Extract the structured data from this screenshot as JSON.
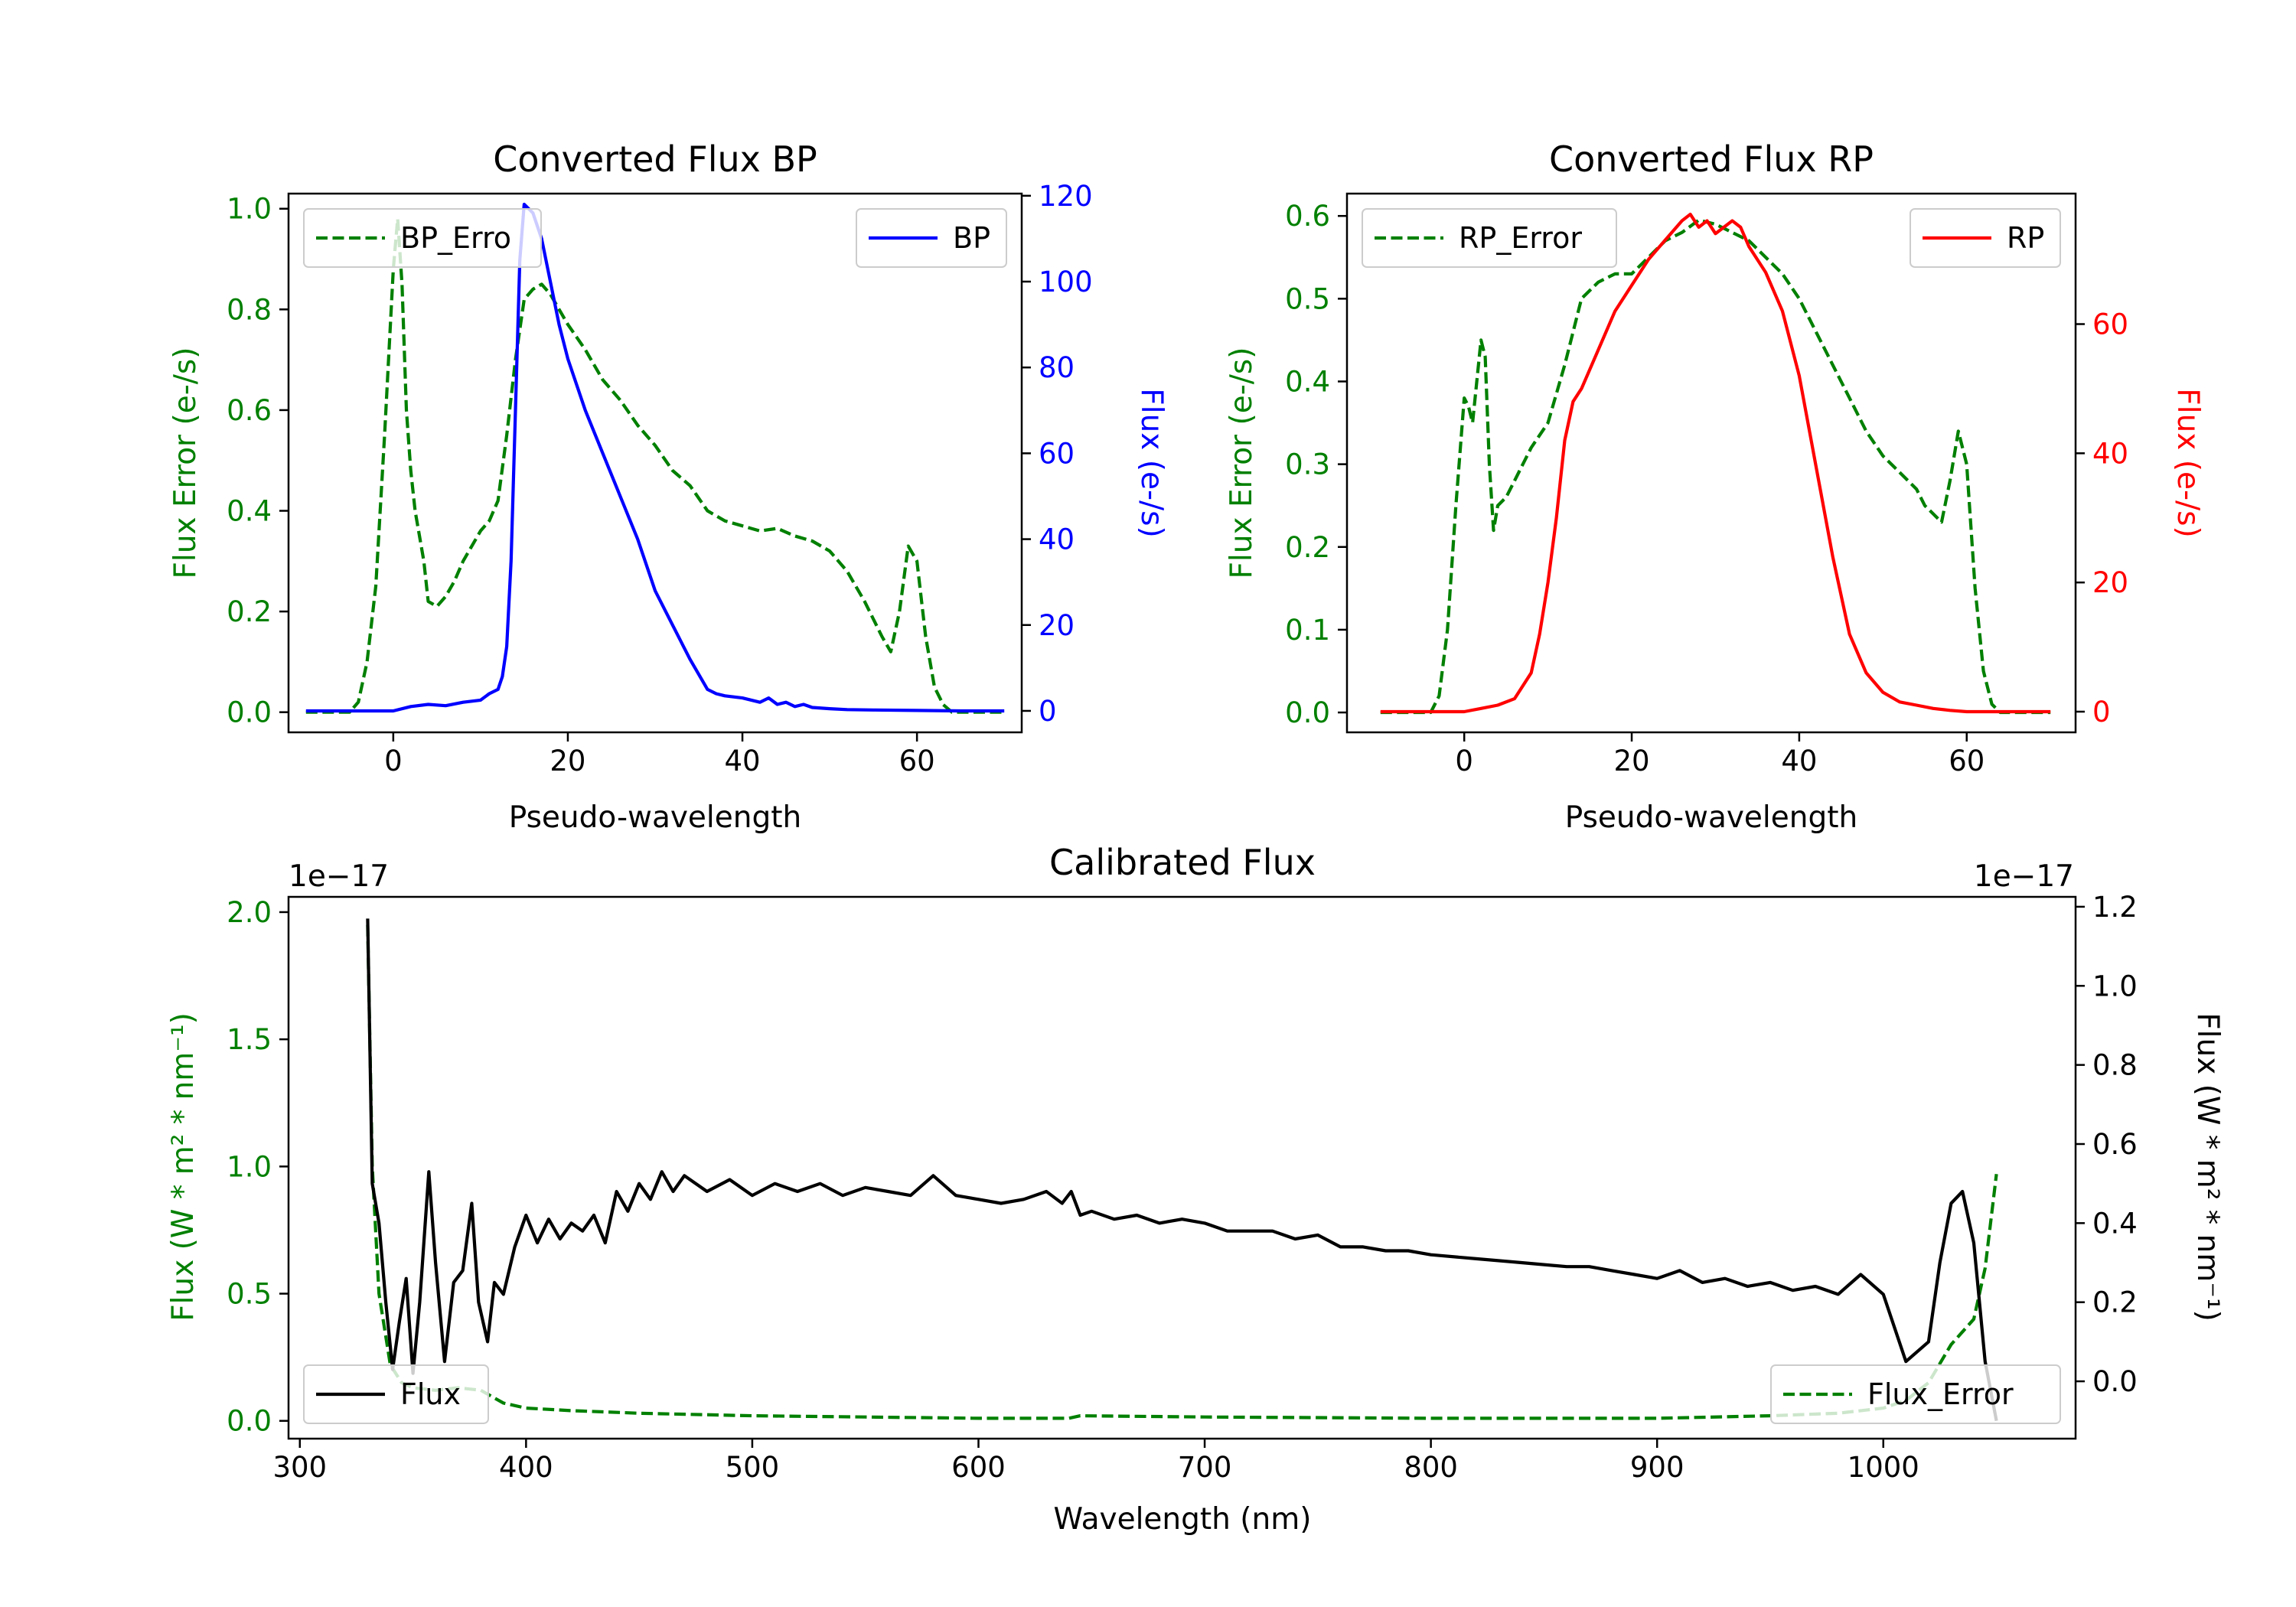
{
  "colors": {
    "green": "#008000",
    "blue": "#0000ff",
    "red": "#ff0000",
    "black": "#000000",
    "legend_edge": "#cccccc"
  },
  "chart_data": [
    {
      "id": "bp",
      "type": "line",
      "title": "Converted Flux BP",
      "xlabel": "Pseudo-wavelength",
      "xlim": [
        -12,
        72
      ],
      "xticks": [
        0,
        20,
        40,
        60
      ],
      "left_axis": {
        "label": "Flux Error (e-/s)",
        "ylim": [
          -0.04,
          1.03
        ],
        "ticks": [
          0.0,
          0.2,
          0.4,
          0.6,
          0.8,
          1.0
        ],
        "tick_labels": [
          "0.0",
          "0.2",
          "0.4",
          "0.6",
          "0.8",
          "1.0"
        ],
        "color": "green"
      },
      "right_axis": {
        "label": "Flux (e-/s)",
        "ylim": [
          -5,
          120.5
        ],
        "ticks": [
          0,
          20,
          40,
          60,
          80,
          100,
          120
        ],
        "tick_labels": [
          "0",
          "20",
          "40",
          "60",
          "80",
          "100",
          "120"
        ],
        "color": "blue"
      },
      "series": [
        {
          "name": "BP_Error",
          "axis": "left",
          "style": "dashed",
          "color": "green",
          "x": [
            -10,
            -5,
            -4,
            -3,
            -2,
            -1,
            0,
            0.5,
            1,
            1.5,
            2,
            2.5,
            3,
            3.5,
            4,
            5,
            6,
            7,
            8,
            9,
            10,
            11,
            12,
            13,
            14,
            15,
            16,
            17,
            18,
            19,
            20,
            22,
            24,
            26,
            28,
            30,
            32,
            34,
            36,
            38,
            40,
            42,
            44,
            46,
            48,
            50,
            52,
            54,
            56,
            57,
            58,
            59,
            60,
            61,
            62,
            63,
            64,
            65,
            70
          ],
          "values": [
            0,
            0,
            0.02,
            0.1,
            0.25,
            0.55,
            0.88,
            0.98,
            0.85,
            0.6,
            0.48,
            0.4,
            0.35,
            0.3,
            0.22,
            0.21,
            0.23,
            0.26,
            0.3,
            0.33,
            0.36,
            0.38,
            0.42,
            0.55,
            0.7,
            0.82,
            0.84,
            0.85,
            0.83,
            0.8,
            0.77,
            0.72,
            0.66,
            0.62,
            0.57,
            0.53,
            0.48,
            0.45,
            0.4,
            0.38,
            0.37,
            0.36,
            0.365,
            0.35,
            0.34,
            0.32,
            0.28,
            0.22,
            0.15,
            0.12,
            0.2,
            0.33,
            0.3,
            0.15,
            0.05,
            0.015,
            0,
            0,
            0
          ]
        },
        {
          "name": "BP",
          "axis": "right",
          "style": "solid",
          "color": "blue",
          "x": [
            -10,
            -5,
            0,
            2,
            4,
            6,
            8,
            10,
            11,
            12,
            12.5,
            13,
            13.5,
            14,
            14.5,
            15,
            15.5,
            16,
            16.5,
            17,
            18,
            19,
            20,
            22,
            24,
            26,
            28,
            30,
            32,
            34,
            36,
            37,
            38,
            40,
            42,
            43,
            44,
            45,
            46,
            47,
            48,
            50,
            52,
            55,
            60,
            65,
            70
          ],
          "values": [
            0,
            0,
            0,
            1,
            1.5,
            1.2,
            2,
            2.5,
            4,
            5,
            8,
            15,
            35,
            70,
            105,
            118,
            117,
            116,
            113,
            110,
            100,
            90,
            82,
            70,
            60,
            50,
            40,
            28,
            20,
            12,
            5,
            4,
            3.5,
            3,
            2,
            3,
            1.5,
            2,
            1,
            1.5,
            0.8,
            0.5,
            0.3,
            0.2,
            0.1,
            0,
            0
          ]
        }
      ],
      "legend": [
        {
          "label": "BP_Erro",
          "series": "BP_Error",
          "loc": "upper left"
        },
        {
          "label": "BP",
          "series": "BP",
          "loc": "upper right"
        }
      ]
    },
    {
      "id": "rp",
      "type": "line",
      "title": "Converted Flux RP",
      "xlabel": "Pseudo-wavelength",
      "xlim": [
        -14,
        73
      ],
      "xticks": [
        0,
        20,
        40,
        60
      ],
      "left_axis": {
        "label": "Flux Error (e-/s)",
        "ylim": [
          -0.024,
          0.627
        ],
        "ticks": [
          0.0,
          0.1,
          0.2,
          0.3,
          0.4,
          0.5,
          0.6
        ],
        "tick_labels": [
          "0.0",
          "0.1",
          "0.2",
          "0.3",
          "0.4",
          "0.5",
          "0.6"
        ],
        "color": "green"
      },
      "right_axis": {
        "label": "Flux (e-/s)",
        "ylim": [
          -3.2,
          80.2
        ],
        "ticks": [
          0,
          20,
          40,
          60
        ],
        "tick_labels": [
          "0",
          "20",
          "40",
          "60"
        ],
        "color": "red"
      },
      "series": [
        {
          "name": "RP_Error",
          "axis": "left",
          "style": "dashed",
          "color": "green",
          "x": [
            -10,
            -4,
            -3,
            -2,
            -1,
            0,
            0.5,
            1,
            1.5,
            2,
            2.5,
            3,
            3.5,
            4,
            5,
            6,
            8,
            10,
            12,
            14,
            16,
            18,
            20,
            22,
            24,
            26,
            28,
            30,
            32,
            34,
            36,
            38,
            40,
            42,
            44,
            46,
            48,
            50,
            52,
            54,
            55,
            56,
            57,
            58,
            59,
            60,
            61,
            62,
            63,
            64,
            65,
            70
          ],
          "values": [
            0,
            0,
            0.02,
            0.1,
            0.25,
            0.38,
            0.37,
            0.35,
            0.4,
            0.45,
            0.43,
            0.3,
            0.22,
            0.25,
            0.26,
            0.28,
            0.32,
            0.35,
            0.42,
            0.5,
            0.52,
            0.53,
            0.53,
            0.55,
            0.57,
            0.58,
            0.595,
            0.59,
            0.58,
            0.57,
            0.55,
            0.53,
            0.5,
            0.46,
            0.42,
            0.38,
            0.34,
            0.31,
            0.29,
            0.27,
            0.25,
            0.24,
            0.23,
            0.28,
            0.34,
            0.3,
            0.15,
            0.05,
            0.01,
            0,
            0,
            0
          ]
        },
        {
          "name": "RP",
          "axis": "right",
          "style": "solid",
          "color": "red",
          "x": [
            -10,
            0,
            2,
            4,
            6,
            8,
            9,
            10,
            11,
            12,
            13,
            14,
            16,
            18,
            20,
            22,
            24,
            26,
            27,
            28,
            29,
            30,
            31,
            32,
            33,
            34,
            36,
            38,
            40,
            42,
            44,
            46,
            48,
            50,
            52,
            54,
            56,
            58,
            60,
            62,
            65,
            70
          ],
          "values": [
            0,
            0,
            0.5,
            1,
            2,
            6,
            12,
            20,
            30,
            42,
            48,
            50,
            56,
            62,
            66,
            70,
            73,
            76,
            77,
            75,
            76,
            74,
            75,
            76,
            75,
            72,
            68,
            62,
            52,
            38,
            24,
            12,
            6,
            3,
            1.5,
            1,
            0.5,
            0.2,
            0,
            0,
            0,
            0
          ]
        }
      ],
      "legend": [
        {
          "label": "RP_Error",
          "series": "RP_Error",
          "loc": "upper left"
        },
        {
          "label": "RP",
          "series": "RP",
          "loc": "upper right"
        }
      ]
    },
    {
      "id": "cal",
      "type": "line",
      "title": "Calibrated Flux",
      "xlabel": "Wavelength (nm)",
      "xlim": [
        295,
        1085
      ],
      "xticks": [
        300,
        400,
        500,
        600,
        700,
        800,
        900,
        1000
      ],
      "left_axis": {
        "label": "Flux (W * m² * nm⁻¹)",
        "offset_text": "1e−17",
        "ylim": [
          -0.07,
          2.06
        ],
        "ticks": [
          0.0,
          0.5,
          1.0,
          1.5,
          2.0
        ],
        "tick_labels": [
          "0.0",
          "0.5",
          "1.0",
          "1.5",
          "2.0"
        ],
        "color": "green"
      },
      "right_axis": {
        "label": "Flux (W * m² * nm⁻¹)",
        "offset_text": "1e−17",
        "ylim": [
          -0.145,
          1.225
        ],
        "ticks": [
          0.0,
          0.2,
          0.4,
          0.6,
          0.8,
          1.0,
          1.2
        ],
        "tick_labels": [
          "0.0",
          "0.2",
          "0.4",
          "0.6",
          "0.8",
          "1.0",
          "1.2"
        ],
        "color": "black"
      },
      "series": [
        {
          "name": "Flux_Error",
          "axis": "left",
          "style": "dashed",
          "color": "green",
          "x": [
            330,
            332,
            335,
            340,
            345,
            350,
            360,
            370,
            380,
            390,
            400,
            420,
            450,
            500,
            550,
            600,
            640,
            645,
            700,
            800,
            900,
            950,
            980,
            1000,
            1010,
            1020,
            1030,
            1040,
            1045,
            1050
          ],
          "values": [
            1.95,
            1.0,
            0.5,
            0.22,
            0.15,
            0.13,
            0.12,
            0.13,
            0.12,
            0.07,
            0.05,
            0.04,
            0.03,
            0.02,
            0.015,
            0.01,
            0.01,
            0.02,
            0.015,
            0.01,
            0.01,
            0.02,
            0.03,
            0.05,
            0.08,
            0.15,
            0.3,
            0.4,
            0.6,
            0.97
          ]
        },
        {
          "name": "Flux",
          "axis": "right",
          "style": "solid",
          "color": "black",
          "x": [
            330,
            332,
            335,
            338,
            341,
            344,
            347,
            350,
            353,
            357,
            360,
            364,
            368,
            372,
            376,
            379,
            383,
            386,
            390,
            395,
            400,
            405,
            410,
            415,
            420,
            425,
            430,
            435,
            440,
            445,
            450,
            455,
            460,
            465,
            470,
            480,
            490,
            500,
            510,
            520,
            530,
            540,
            550,
            560,
            570,
            580,
            590,
            600,
            610,
            620,
            630,
            637,
            641,
            645,
            650,
            660,
            670,
            680,
            690,
            700,
            710,
            720,
            730,
            740,
            750,
            760,
            770,
            780,
            790,
            800,
            820,
            840,
            860,
            870,
            880,
            890,
            900,
            910,
            920,
            930,
            940,
            950,
            960,
            970,
            980,
            990,
            1000,
            1010,
            1020,
            1025,
            1030,
            1035,
            1040,
            1045,
            1050
          ],
          "values": [
            1.17,
            0.5,
            0.4,
            0.2,
            0.03,
            0.15,
            0.26,
            0.02,
            0.2,
            0.53,
            0.3,
            0.05,
            0.25,
            0.28,
            0.45,
            0.2,
            0.1,
            0.25,
            0.22,
            0.34,
            0.42,
            0.35,
            0.41,
            0.36,
            0.4,
            0.38,
            0.42,
            0.35,
            0.48,
            0.43,
            0.5,
            0.46,
            0.53,
            0.48,
            0.52,
            0.48,
            0.51,
            0.47,
            0.5,
            0.48,
            0.5,
            0.47,
            0.49,
            0.48,
            0.47,
            0.52,
            0.47,
            0.46,
            0.45,
            0.46,
            0.48,
            0.45,
            0.48,
            0.42,
            0.43,
            0.41,
            0.42,
            0.4,
            0.41,
            0.4,
            0.38,
            0.38,
            0.38,
            0.36,
            0.37,
            0.34,
            0.34,
            0.33,
            0.33,
            0.32,
            0.31,
            0.3,
            0.29,
            0.29,
            0.28,
            0.27,
            0.26,
            0.28,
            0.25,
            0.26,
            0.24,
            0.25,
            0.23,
            0.24,
            0.22,
            0.27,
            0.22,
            0.05,
            0.1,
            0.3,
            0.45,
            0.48,
            0.35,
            0.05,
            -0.1
          ]
        }
      ],
      "legend": [
        {
          "label": "Flux",
          "series": "Flux",
          "loc": "lower left"
        },
        {
          "label": "Flux_Error",
          "series": "Flux_Error",
          "loc": "lower right"
        }
      ]
    }
  ]
}
